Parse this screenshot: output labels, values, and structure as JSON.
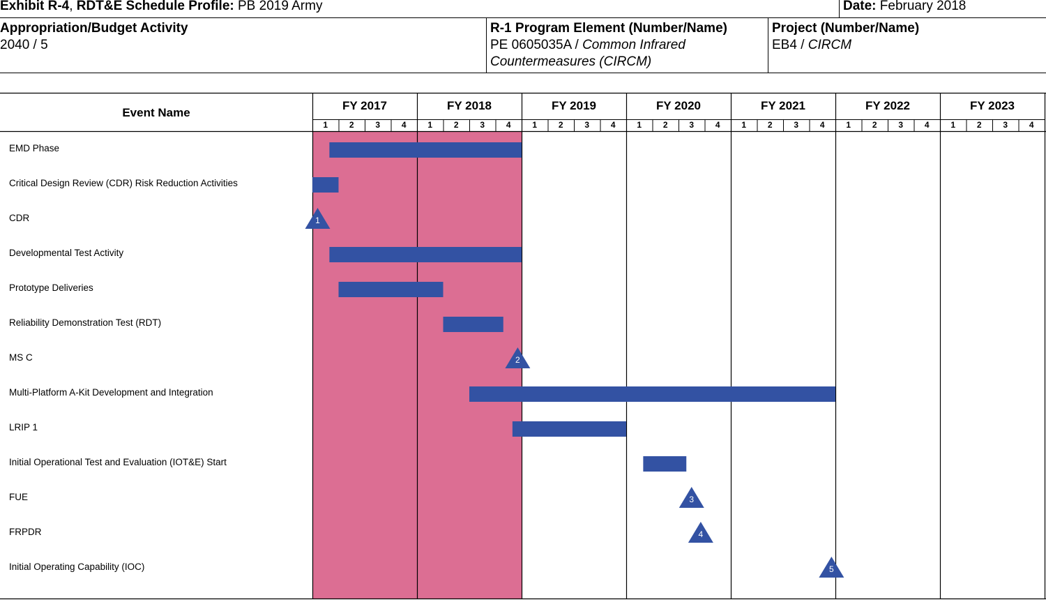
{
  "header": {
    "exhibit_label": "Exhibit R-4",
    "exhibit_sep": ", ",
    "exhibit_title": "RDT&E Schedule Profile:",
    "exhibit_value": " PB 2019 Army",
    "date_label": "Date:",
    "date_value": " February 2018",
    "appropriation_label": "Appropriation/Budget Activity",
    "appropriation_value": "2040 / 5",
    "program_label": "R-1 Program Element (Number/Name)",
    "program_number": "PE 0605035A / ",
    "program_name_line1": "Common Infrared",
    "program_name_line2": "Countermeasures (CIRCM)",
    "project_label": "Project (Number/Name)",
    "project_number": "EB4 / ",
    "project_name": "CIRCM"
  },
  "schedule": {
    "event_column_header": "Event Name",
    "fiscal_years": [
      "FY 2017",
      "FY 2018",
      "FY 2019",
      "FY 2020",
      "FY 2021",
      "FY 2022",
      "FY 2023"
    ],
    "quarters": [
      "1",
      "2",
      "3",
      "4"
    ],
    "shaded_fiscal_years": [
      "FY 2017",
      "FY 2018"
    ],
    "colors": {
      "shade": "#dc6e93",
      "bar": "#3352a3",
      "grid": "#000000"
    },
    "events": [
      {
        "name": "EMD Phase",
        "type": "bar",
        "start_quarter": 0.65,
        "end_quarter": 8.0
      },
      {
        "name": "Critical Design Review (CDR) Risk Reduction Activities",
        "type": "bar",
        "start_quarter": 0.0,
        "end_quarter": 1.0
      },
      {
        "name": "CDR",
        "type": "milestone",
        "label": "1",
        "quarter": 0.2
      },
      {
        "name": "Developmental Test Activity",
        "type": "bar",
        "start_quarter": 0.65,
        "end_quarter": 8.0
      },
      {
        "name": "Prototype Deliveries",
        "type": "bar",
        "start_quarter": 1.0,
        "end_quarter": 5.0
      },
      {
        "name": "Reliability Demonstration Test (RDT)",
        "type": "bar",
        "start_quarter": 5.0,
        "end_quarter": 7.3
      },
      {
        "name": "MS C",
        "type": "milestone",
        "label": "2",
        "quarter": 7.85
      },
      {
        "name": "Multi-Platform A-Kit Development and Integration",
        "type": "bar",
        "start_quarter": 6.0,
        "end_quarter": 20.0
      },
      {
        "name": "LRIP 1",
        "type": "bar",
        "start_quarter": 7.65,
        "end_quarter": 12.0
      },
      {
        "name": "Initial Operational Test and Evaluation (IOT&E) Start",
        "type": "bar",
        "start_quarter": 12.65,
        "end_quarter": 14.3
      },
      {
        "name": "FUE",
        "type": "milestone",
        "label": "3",
        "quarter": 14.5
      },
      {
        "name": "FRPDR",
        "type": "milestone",
        "label": "4",
        "quarter": 14.85
      },
      {
        "name": "Initial Operating Capability (IOC)",
        "type": "milestone",
        "label": "5",
        "quarter": 19.85
      }
    ]
  }
}
